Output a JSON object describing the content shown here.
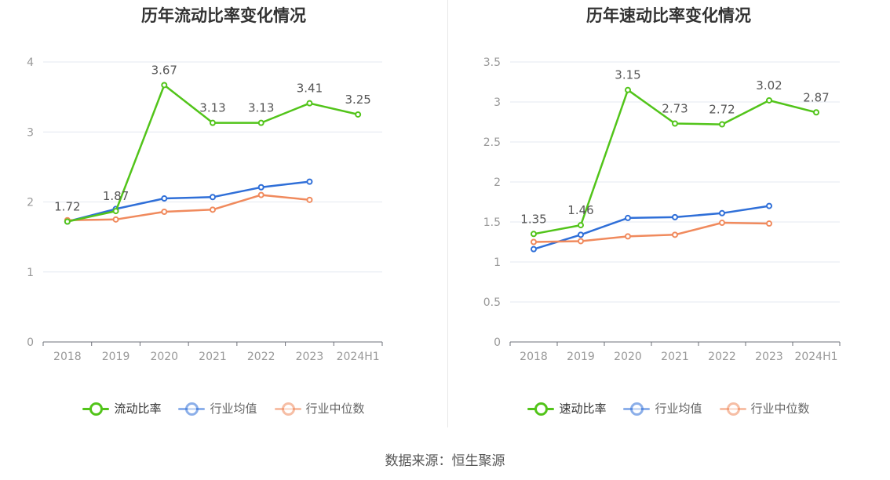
{
  "colors": {
    "primary": "#52c41a",
    "avg": "#2f6fd8",
    "median": "#f08a5d",
    "axis": "#999999",
    "grid": "#e4e8f0",
    "label": "#555555"
  },
  "source_text": "数据来源：恒生聚源",
  "chart_data": [
    {
      "type": "line",
      "title": "历年流动比率变化情况",
      "categories": [
        "2018",
        "2019",
        "2020",
        "2021",
        "2022",
        "2023",
        "2024H1"
      ],
      "ylim": [
        0,
        4
      ],
      "yticks": [
        0,
        1,
        2,
        3,
        4
      ],
      "grid": true,
      "legend_position": "bottom",
      "series": [
        {
          "name": "流动比率",
          "key": "primary",
          "values": [
            1.72,
            1.87,
            3.67,
            3.13,
            3.13,
            3.41,
            3.25
          ],
          "show_labels": true
        },
        {
          "name": "行业均值",
          "key": "avg",
          "values": [
            1.72,
            1.9,
            2.05,
            2.07,
            2.21,
            2.29,
            null
          ],
          "show_labels": false
        },
        {
          "name": "行业中位数",
          "key": "median",
          "values": [
            1.74,
            1.75,
            1.86,
            1.89,
            2.1,
            2.03,
            null
          ],
          "show_labels": false
        }
      ]
    },
    {
      "type": "line",
      "title": "历年速动比率变化情况",
      "categories": [
        "2018",
        "2019",
        "2020",
        "2021",
        "2022",
        "2023",
        "2024H1"
      ],
      "ylim": [
        0,
        3.5
      ],
      "yticks": [
        0,
        0.5,
        1,
        1.5,
        2,
        2.5,
        3,
        3.5
      ],
      "grid": true,
      "legend_position": "bottom",
      "series": [
        {
          "name": "速动比率",
          "key": "primary",
          "values": [
            1.35,
            1.46,
            3.15,
            2.73,
            2.72,
            3.02,
            2.87
          ],
          "show_labels": true
        },
        {
          "name": "行业均值",
          "key": "avg",
          "values": [
            1.16,
            1.34,
            1.55,
            1.56,
            1.61,
            1.7,
            null
          ],
          "show_labels": false
        },
        {
          "name": "行业中位数",
          "key": "median",
          "values": [
            1.25,
            1.26,
            1.32,
            1.34,
            1.49,
            1.48,
            null
          ],
          "show_labels": false
        }
      ]
    }
  ]
}
